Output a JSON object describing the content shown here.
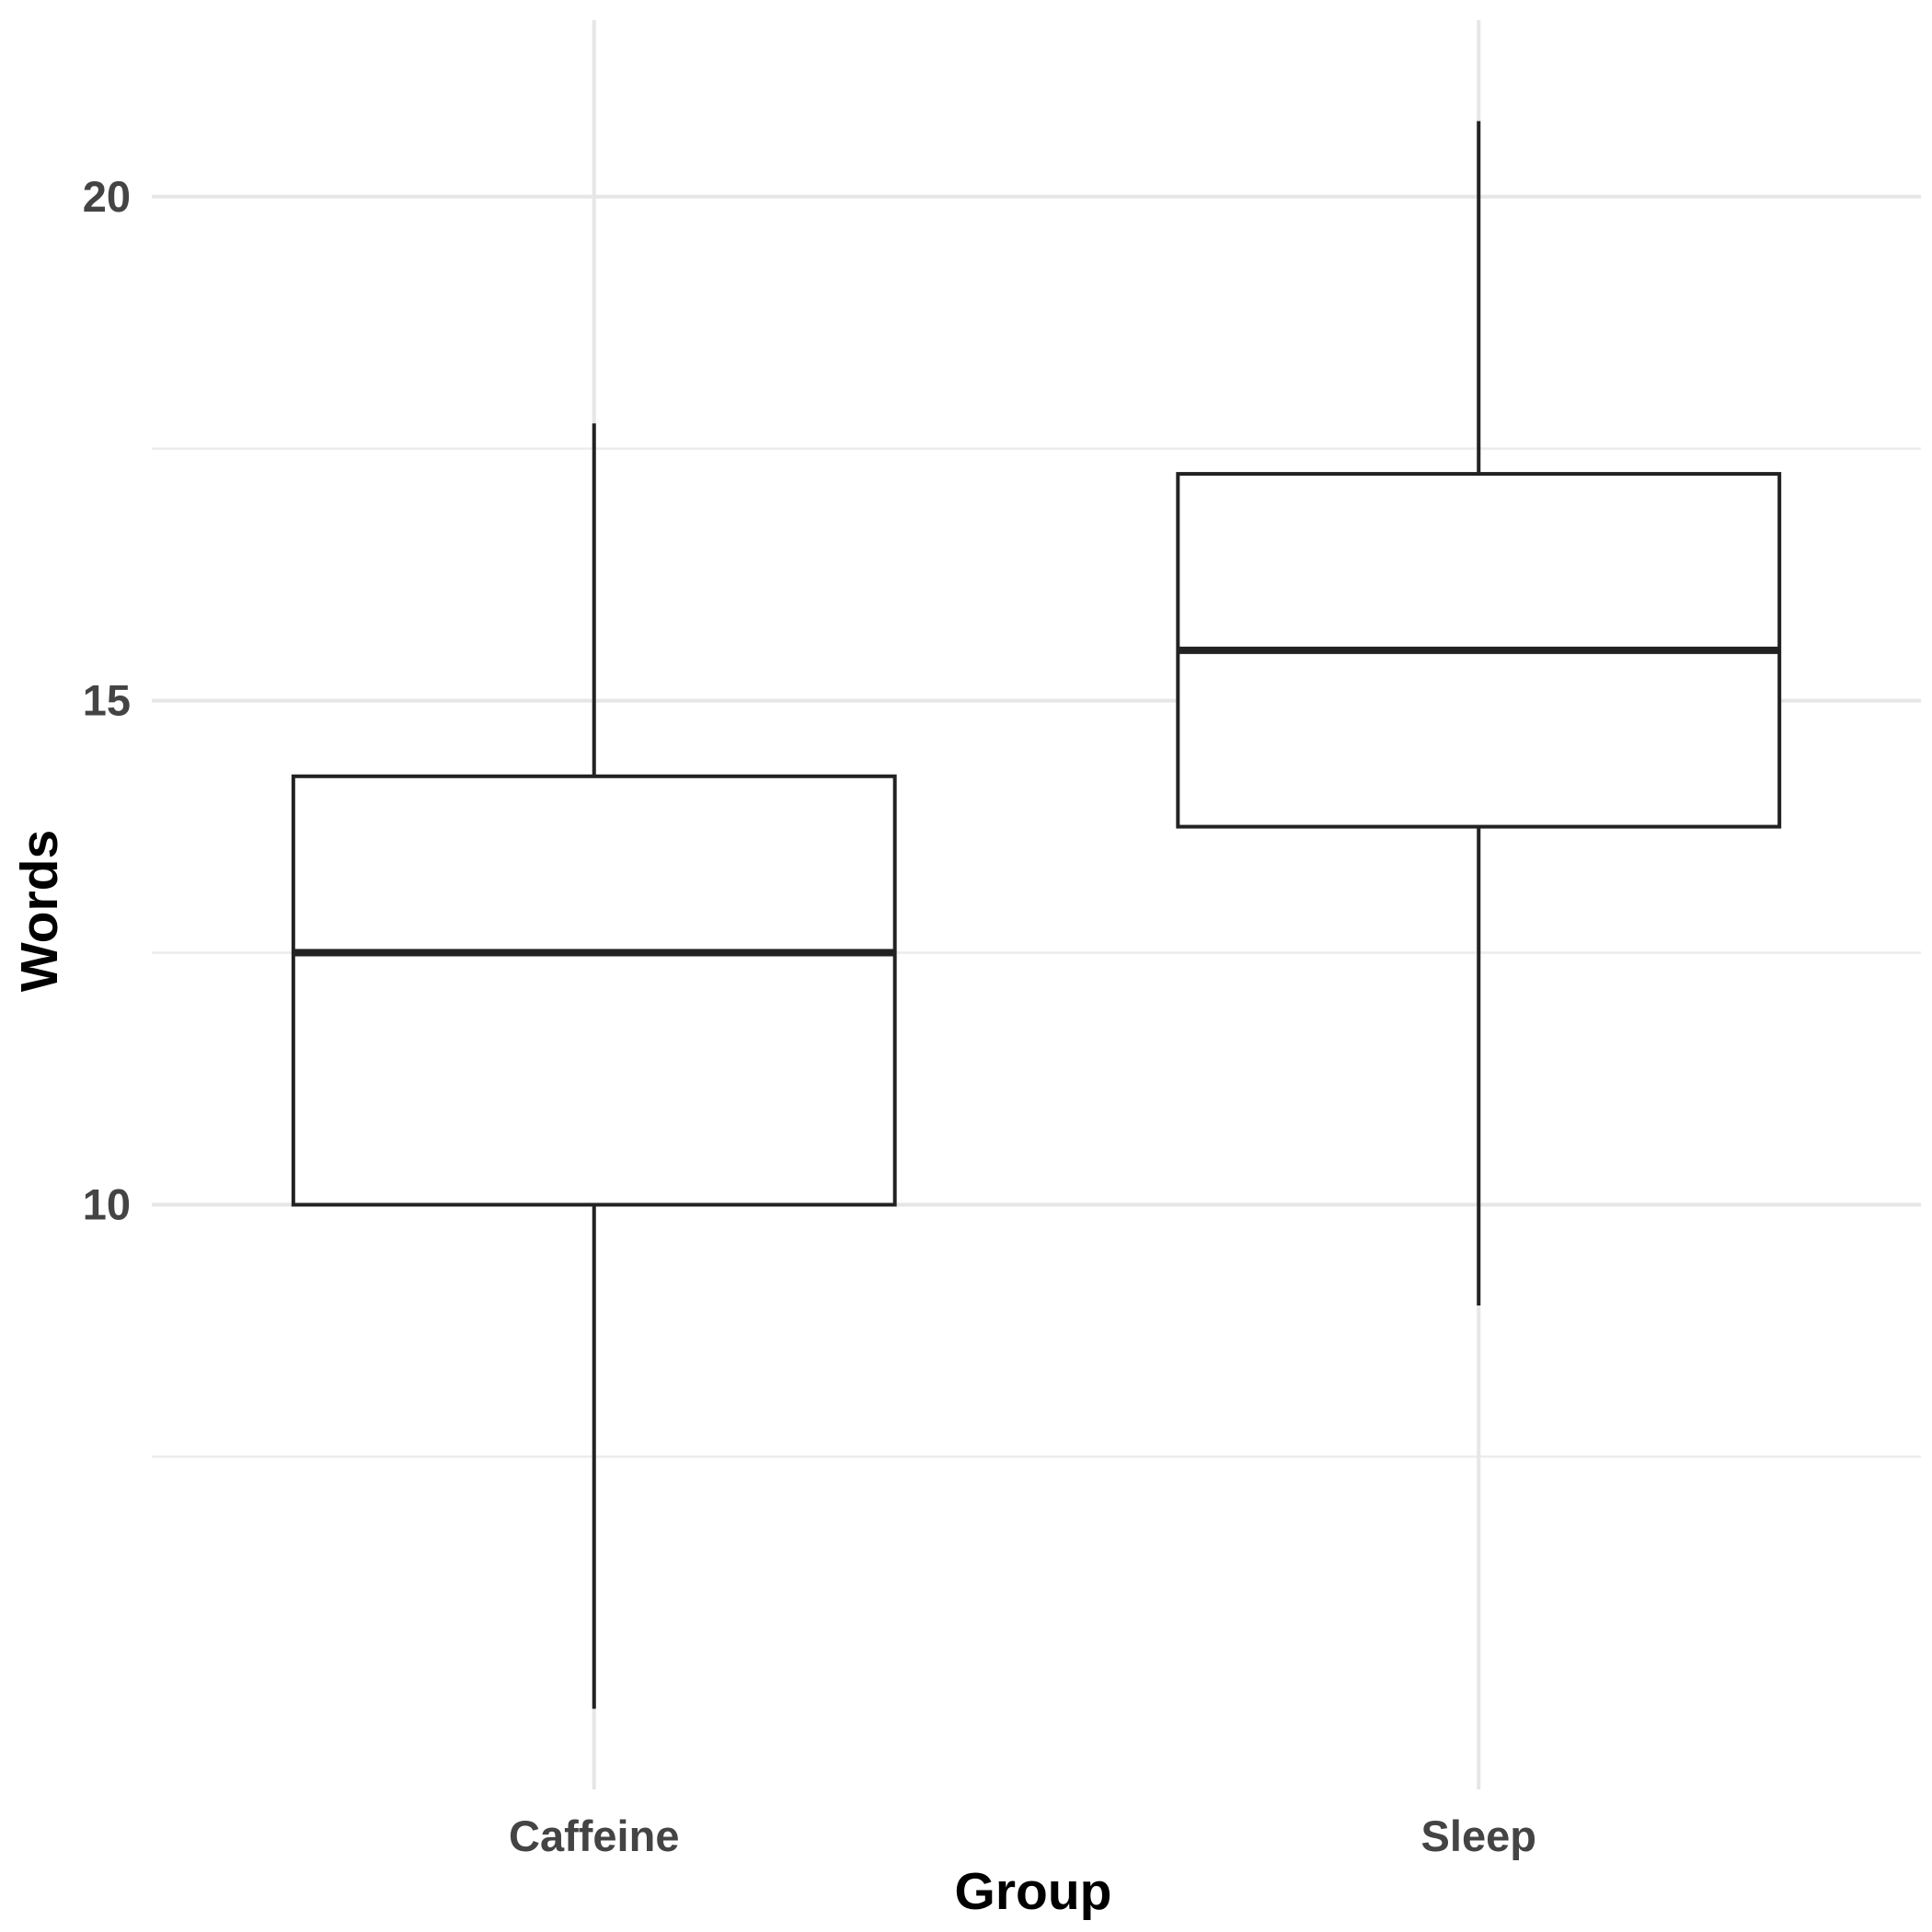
{
  "chart_data": {
    "type": "boxplot",
    "title": "",
    "xlabel": "Group",
    "ylabel": "Words",
    "categories": [
      "Caffeine",
      "Sleep"
    ],
    "boxes": [
      {
        "category": "Caffeine",
        "whisker_low": 5,
        "q1": 10,
        "median": 12.5,
        "q3": 14.25,
        "whisker_high": 17.75
      },
      {
        "category": "Sleep",
        "whisker_low": 9,
        "q1": 13.75,
        "median": 15.5,
        "q3": 17.25,
        "whisker_high": 20.75
      }
    ],
    "yticks": [
      10,
      15,
      20
    ],
    "yticks_minor": [
      7.5,
      12.5,
      17.5
    ],
    "ylim": [
      4.2,
      21.75
    ],
    "grid": true,
    "legend": "none"
  }
}
